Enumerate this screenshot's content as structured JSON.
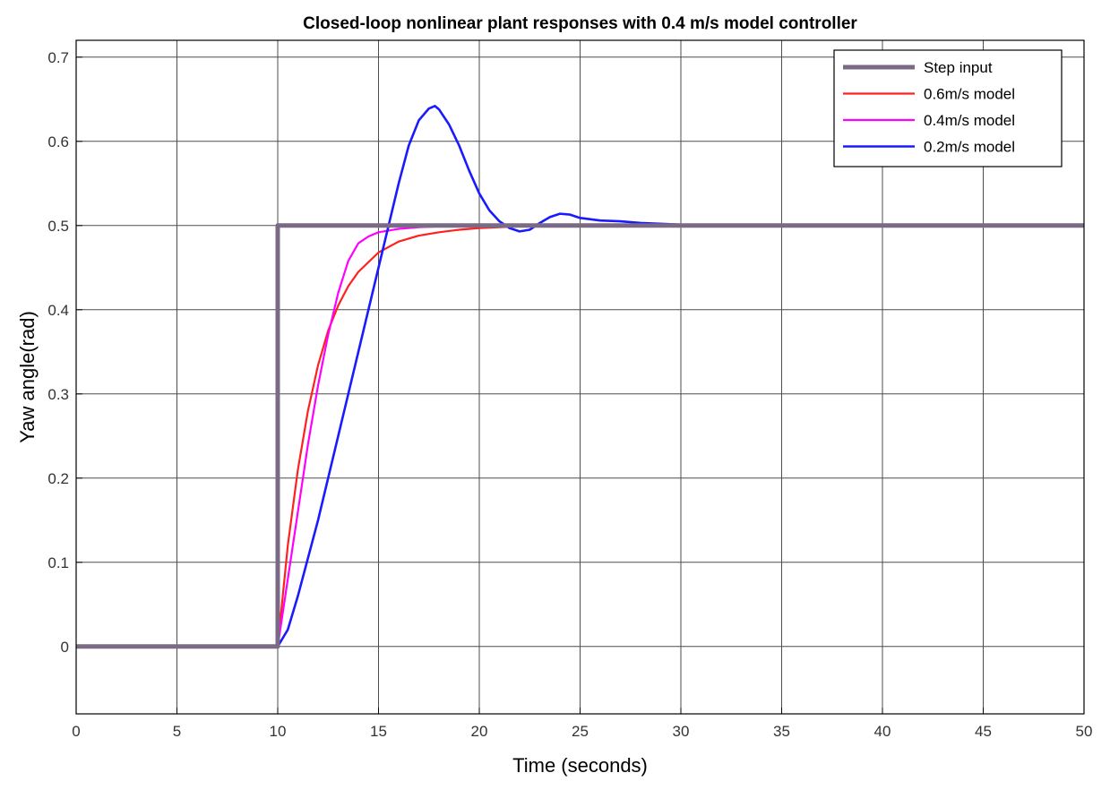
{
  "chart_data": {
    "type": "line",
    "title": "Closed-loop nonlinear plant responses with 0.4 m/s model controller",
    "xlabel": "Time (seconds)",
    "ylabel": "Yaw angle(rad)",
    "xlim": [
      0,
      50
    ],
    "ylim": [
      -0.08,
      0.72
    ],
    "xticks": [
      "0",
      "5",
      "10",
      "15",
      "20",
      "25",
      "30",
      "35",
      "40",
      "45",
      "50"
    ],
    "yticks": [
      "0",
      "0.1",
      "0.2",
      "0.3",
      "0.4",
      "0.5",
      "0.6",
      "0.7"
    ],
    "grid": true,
    "legend_position": "top-right",
    "colors": {
      "step": "#7b6a86",
      "model_06": "#ff2020",
      "model_04": "#ff00ff",
      "model_02": "#1a1aff"
    },
    "series": [
      {
        "name": "Step input",
        "color": "#7b6a86",
        "x": [
          0,
          10,
          10,
          50
        ],
        "y": [
          0,
          0,
          0.5,
          0.5
        ]
      },
      {
        "name": "0.6m/s model",
        "color": "#ff2020",
        "x": [
          0,
          10,
          10.5,
          11,
          11.5,
          12,
          12.5,
          13,
          13.5,
          14,
          15,
          16,
          17,
          18,
          19,
          20,
          21,
          22,
          24,
          26,
          30,
          50
        ],
        "y": [
          0,
          0,
          0.12,
          0.21,
          0.28,
          0.334,
          0.375,
          0.405,
          0.428,
          0.445,
          0.468,
          0.481,
          0.488,
          0.492,
          0.495,
          0.497,
          0.498,
          0.499,
          0.5,
          0.5,
          0.5,
          0.5
        ]
      },
      {
        "name": "0.4m/s model",
        "color": "#ff00ff",
        "x": [
          0,
          10,
          10.5,
          11,
          11.5,
          12,
          12.5,
          13,
          13.5,
          14,
          14.5,
          15,
          16,
          17,
          18,
          20,
          22,
          30,
          50
        ],
        "y": [
          0,
          0,
          0.08,
          0.16,
          0.24,
          0.31,
          0.37,
          0.42,
          0.458,
          0.479,
          0.487,
          0.492,
          0.496,
          0.498,
          0.499,
          0.5,
          0.5,
          0.5,
          0.5
        ]
      },
      {
        "name": "0.2m/s model",
        "color": "#1a1aff",
        "x": [
          0,
          10,
          10.5,
          11,
          12,
          13,
          14,
          15,
          16,
          16.5,
          17,
          17.5,
          17.8,
          18,
          18.5,
          19,
          19.5,
          20,
          20.5,
          21,
          21.5,
          22,
          22.5,
          23,
          23.5,
          24,
          24.5,
          25,
          26,
          27,
          28,
          30,
          32,
          35,
          50
        ],
        "y": [
          0,
          0,
          0.02,
          0.06,
          0.15,
          0.25,
          0.35,
          0.45,
          0.55,
          0.595,
          0.625,
          0.639,
          0.642,
          0.638,
          0.62,
          0.595,
          0.565,
          0.538,
          0.518,
          0.505,
          0.497,
          0.493,
          0.495,
          0.503,
          0.51,
          0.514,
          0.513,
          0.509,
          0.506,
          0.505,
          0.503,
          0.501,
          0.5,
          0.5,
          0.5
        ]
      }
    ]
  }
}
